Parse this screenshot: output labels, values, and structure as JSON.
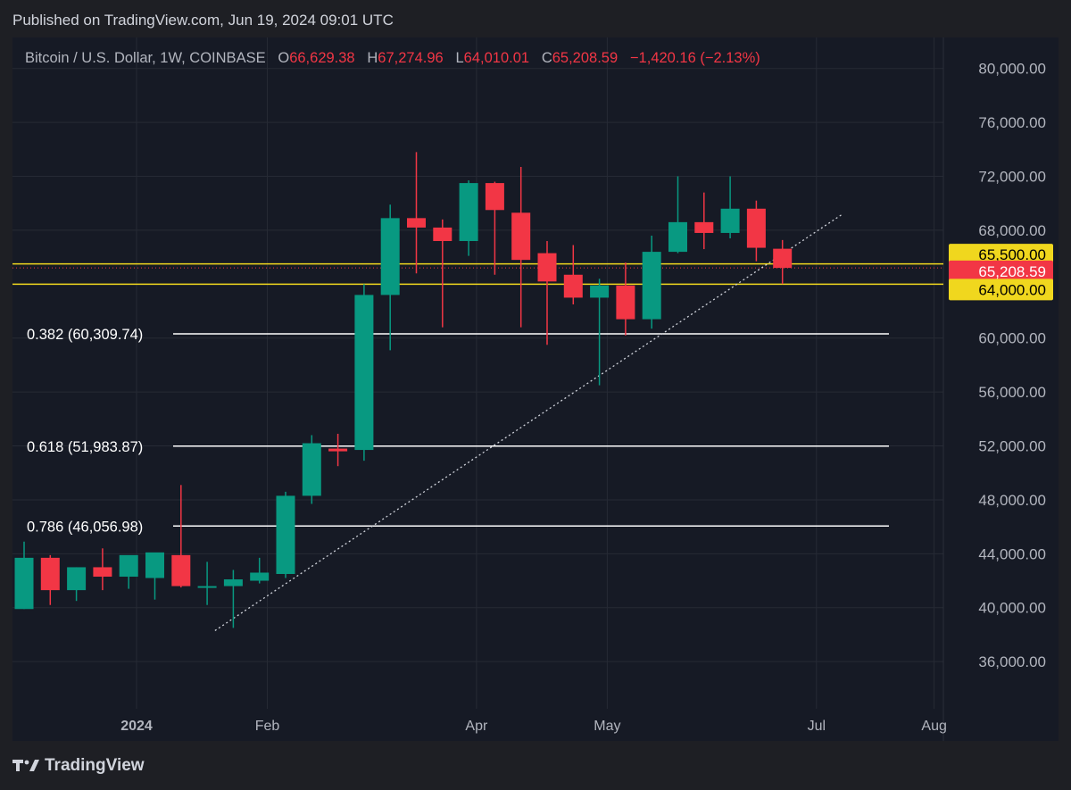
{
  "header": {
    "published": "Published on TradingView.com, Jun 19, 2024 09:01 UTC"
  },
  "legend": {
    "symbol": "Bitcoin / U.S. Dollar, 1W, COINBASE",
    "o_label": "O",
    "o_value": "66,629.38",
    "h_label": "H",
    "h_value": "67,274.96",
    "l_label": "L",
    "l_value": "64,010.01",
    "c_label": "C",
    "c_value": "65,208.59",
    "change": "−1,420.16 (−2.13%)"
  },
  "footer": {
    "brand": "TradingView"
  },
  "colors": {
    "up": "#089981",
    "down": "#f23645",
    "background": "#161a25",
    "grid": "#262a35",
    "hline": "#f0d71e",
    "fib": "#ffffff",
    "trendline": "#d1d4dc"
  },
  "chart_data": {
    "type": "candlestick",
    "symbol": "Bitcoin / U.S. Dollar",
    "interval": "1W",
    "exchange": "COINBASE",
    "ylim": [
      32500,
      82300
    ],
    "y_ticks": [
      36000,
      40000,
      44000,
      48000,
      52000,
      56000,
      60000,
      64000,
      68000,
      72000,
      76000,
      80000
    ],
    "y_tick_labels": [
      "36,000.00",
      "40,000.00",
      "44,000.00",
      "48,000.00",
      "52,000.00",
      "56,000.00",
      "60,000.00",
      "64,000.00",
      "68,000.00",
      "72,000.00",
      "76,000.00",
      "80,000.00"
    ],
    "x_labels": [
      {
        "label": "2024",
        "candle_index": 4.3,
        "bold": true
      },
      {
        "label": "Feb",
        "candle_index": 9.3
      },
      {
        "label": "Apr",
        "candle_index": 17.3
      },
      {
        "label": "May",
        "candle_index": 22.3
      },
      {
        "label": "Jul",
        "candle_index": 30.3
      },
      {
        "label": "Aug",
        "candle_index": 34.8
      }
    ],
    "candles": [
      {
        "open": 39900,
        "high": 44900,
        "low": 39900,
        "close": 43700
      },
      {
        "open": 43700,
        "high": 43900,
        "low": 40200,
        "close": 41300
      },
      {
        "open": 41300,
        "high": 43000,
        "low": 40500,
        "close": 43000
      },
      {
        "open": 43000,
        "high": 44400,
        "low": 41300,
        "close": 42300
      },
      {
        "open": 42300,
        "high": 43800,
        "low": 41400,
        "close": 43900
      },
      {
        "open": 42200,
        "high": 43900,
        "low": 40600,
        "close": 44100
      },
      {
        "open": 43900,
        "high": 49100,
        "low": 41500,
        "close": 41600
      },
      {
        "open": 41600,
        "high": 43400,
        "low": 40200,
        "close": 41600
      },
      {
        "open": 41600,
        "high": 42800,
        "low": 38500,
        "close": 42100
      },
      {
        "open": 42000,
        "high": 43700,
        "low": 41800,
        "close": 42600
      },
      {
        "open": 42500,
        "high": 48600,
        "low": 42200,
        "close": 48300
      },
      {
        "open": 48300,
        "high": 52800,
        "low": 47700,
        "close": 52200
      },
      {
        "open": 51800,
        "high": 52900,
        "low": 50500,
        "close": 51600
      },
      {
        "open": 51700,
        "high": 64000,
        "low": 50900,
        "close": 63200
      },
      {
        "open": 63200,
        "high": 69900,
        "low": 59100,
        "close": 68900
      },
      {
        "open": 68900,
        "high": 73800,
        "low": 64800,
        "close": 68200
      },
      {
        "open": 68200,
        "high": 68800,
        "low": 60800,
        "close": 67200
      },
      {
        "open": 67200,
        "high": 71700,
        "low": 66100,
        "close": 71500
      },
      {
        "open": 71500,
        "high": 71600,
        "low": 64700,
        "close": 69500
      },
      {
        "open": 69300,
        "high": 72700,
        "low": 60800,
        "close": 65800
      },
      {
        "open": 66300,
        "high": 67200,
        "low": 59500,
        "close": 64200
      },
      {
        "open": 64700,
        "high": 66900,
        "low": 62500,
        "close": 63000
      },
      {
        "open": 63000,
        "high": 64400,
        "low": 56500,
        "close": 63900
      },
      {
        "open": 63900,
        "high": 65600,
        "low": 60200,
        "close": 61400
      },
      {
        "open": 61400,
        "high": 67600,
        "low": 60700,
        "close": 66400
      },
      {
        "open": 66400,
        "high": 72000,
        "low": 66300,
        "close": 68600
      },
      {
        "open": 68600,
        "high": 70800,
        "low": 66600,
        "close": 67800
      },
      {
        "open": 67800,
        "high": 72000,
        "low": 67400,
        "close": 69600
      },
      {
        "open": 69600,
        "high": 70200,
        "low": 65700,
        "close": 66700
      },
      {
        "open": 66629.38,
        "high": 67274.96,
        "low": 64010.01,
        "close": 65208.59
      }
    ],
    "horizontal_levels": [
      {
        "price": 65500,
        "label": "65,500.00",
        "color": "#f0d71e"
      },
      {
        "price": 64000,
        "label": "64,000.00",
        "color": "#f0d71e"
      }
    ],
    "last_price": {
      "price": 65208.59,
      "label": "65,208.59"
    },
    "fib_levels": [
      {
        "label": "0.382 (60,309.74)",
        "price": 60309.74
      },
      {
        "label": "0.618 (51,983.87)",
        "price": 51983.87
      },
      {
        "label": "0.786 (46,056.98)",
        "price": 46056.98
      }
    ],
    "trendline": {
      "start_index": 7.3,
      "start_price": 38300,
      "end_index": 31.3,
      "end_price": 69200
    }
  }
}
